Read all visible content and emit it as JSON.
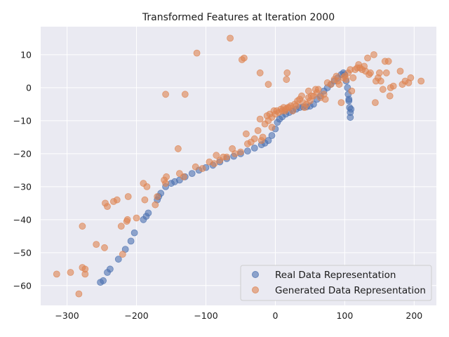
{
  "chart_data": {
    "type": "scatter",
    "title": "Transformed Features at Iteration 2000",
    "xlabel": "",
    "ylabel": "",
    "xlim": [
      -338,
      232
    ],
    "ylim": [
      -66,
      18.5
    ],
    "xticks": [
      -300,
      -200,
      -100,
      0,
      100,
      200
    ],
    "yticks": [
      -60,
      -50,
      -40,
      -30,
      -20,
      -10,
      0,
      10
    ],
    "xtick_labels": [
      "−300",
      "−200",
      "−100",
      "0",
      "100",
      "200"
    ],
    "ytick_labels": [
      "−60",
      "−50",
      "−40",
      "−30",
      "−20",
      "−10",
      "0",
      "10"
    ],
    "grid": true,
    "legend_position": "bottom-right",
    "colors": {
      "background": "#eaeaf2",
      "grid": "#ffffff"
    },
    "series": [
      {
        "name": "Real Data Representation",
        "color": "#4c72b0",
        "points": [
          [
            -252,
            -59
          ],
          [
            -248,
            -58.5
          ],
          [
            -242,
            -56
          ],
          [
            -238,
            -55
          ],
          [
            -226,
            -52
          ],
          [
            -216,
            -49
          ],
          [
            -208,
            -46.5
          ],
          [
            -203,
            -44
          ],
          [
            -190,
            -40
          ],
          [
            -186,
            -39
          ],
          [
            -183,
            -38
          ],
          [
            -170,
            -34
          ],
          [
            -168,
            -33
          ],
          [
            -165,
            -32
          ],
          [
            -158,
            -30
          ],
          [
            -150,
            -29
          ],
          [
            -145,
            -28.5
          ],
          [
            -138,
            -28
          ],
          [
            -130,
            -27
          ],
          [
            -120,
            -26
          ],
          [
            -110,
            -25
          ],
          [
            -100,
            -24.2
          ],
          [
            -90,
            -23.5
          ],
          [
            -80,
            -22.5
          ],
          [
            -70,
            -21.5
          ],
          [
            -60,
            -20.8
          ],
          [
            -50,
            -20
          ],
          [
            -40,
            -19.2
          ],
          [
            -30,
            -18.3
          ],
          [
            -20,
            -17.3
          ],
          [
            -15,
            -16.8
          ],
          [
            -10,
            -16
          ],
          [
            -5,
            -14.5
          ],
          [
            0,
            -12.5
          ],
          [
            3,
            -10.5
          ],
          [
            6,
            -9.5
          ],
          [
            10,
            -8.8
          ],
          [
            15,
            -8
          ],
          [
            20,
            -7.5
          ],
          [
            25,
            -7
          ],
          [
            30,
            -6.5
          ],
          [
            35,
            -6
          ],
          [
            40,
            -5.8
          ],
          [
            45,
            -5.8
          ],
          [
            50,
            -5.6
          ],
          [
            55,
            -5
          ],
          [
            60,
            -3.5
          ],
          [
            65,
            -2.5
          ],
          [
            70,
            -1
          ],
          [
            75,
            0
          ],
          [
            80,
            1
          ],
          [
            85,
            2
          ],
          [
            90,
            3
          ],
          [
            95,
            4
          ],
          [
            98,
            4.5
          ],
          [
            100,
            4
          ],
          [
            102,
            2
          ],
          [
            104,
            0
          ],
          [
            105,
            -2
          ],
          [
            106,
            -4
          ],
          [
            107,
            -6
          ],
          [
            108,
            -7.5
          ],
          [
            108,
            -9
          ],
          [
            109,
            -6.5
          ],
          [
            106,
            -3.5
          ]
        ]
      },
      {
        "name": "Generated Data Representation",
        "color": "#dd8452",
        "points": [
          [
            -315,
            -56.5
          ],
          [
            -295,
            -56
          ],
          [
            -283,
            -62.5
          ],
          [
            -278,
            -54.5
          ],
          [
            -274,
            -55
          ],
          [
            -274,
            -56.5
          ],
          [
            -278,
            -42
          ],
          [
            -258,
            -47.5
          ],
          [
            -246,
            -48.5
          ],
          [
            -245,
            -35
          ],
          [
            -242,
            -36
          ],
          [
            -233,
            -34.5
          ],
          [
            -228,
            -34
          ],
          [
            -222,
            -42
          ],
          [
            -220,
            -50.5
          ],
          [
            -214,
            -40.5
          ],
          [
            -213,
            -40
          ],
          [
            -212,
            -33
          ],
          [
            -200,
            -39.5
          ],
          [
            -190,
            -29
          ],
          [
            -188,
            -34
          ],
          [
            -185,
            -30
          ],
          [
            -173,
            -35.5
          ],
          [
            -170,
            -33
          ],
          [
            -160,
            -28
          ],
          [
            -157,
            -27
          ],
          [
            -158,
            -29
          ],
          [
            -158,
            -2
          ],
          [
            -140,
            -18.5
          ],
          [
            -138,
            -26
          ],
          [
            -132,
            -27
          ],
          [
            -130,
            -2
          ],
          [
            -115,
            -24
          ],
          [
            -113,
            10.5
          ],
          [
            -105,
            -24.5
          ],
          [
            -95,
            -22.5
          ],
          [
            -88,
            -23
          ],
          [
            -85,
            -20.5
          ],
          [
            -80,
            -22
          ],
          [
            -75,
            -21
          ],
          [
            -70,
            -21
          ],
          [
            -65,
            15
          ],
          [
            -62,
            -18.5
          ],
          [
            -58,
            -20
          ],
          [
            -50,
            -19.5
          ],
          [
            -48,
            8.5
          ],
          [
            -45,
            9
          ],
          [
            -42,
            -14
          ],
          [
            -40,
            -17
          ],
          [
            -35,
            -16.5
          ],
          [
            -30,
            -15.5
          ],
          [
            -25,
            -13
          ],
          [
            -22,
            -9.5
          ],
          [
            -20,
            -16
          ],
          [
            -22,
            4.5
          ],
          [
            -18,
            -15
          ],
          [
            -15,
            -11
          ],
          [
            -12,
            -8.5
          ],
          [
            -10,
            -10
          ],
          [
            -10,
            1
          ],
          [
            -8,
            -8
          ],
          [
            -5,
            -9
          ],
          [
            -5,
            -12
          ],
          [
            -2,
            -7
          ],
          [
            0,
            -8
          ],
          [
            2,
            -7
          ],
          [
            5,
            -7.5
          ],
          [
            8,
            -6.5
          ],
          [
            10,
            -7
          ],
          [
            12,
            -6
          ],
          [
            14,
            -7
          ],
          [
            15,
            -6.5
          ],
          [
            16,
            2.5
          ],
          [
            17,
            4.5
          ],
          [
            18,
            -6
          ],
          [
            20,
            -6
          ],
          [
            22,
            -5.5
          ],
          [
            25,
            -7
          ],
          [
            28,
            -5
          ],
          [
            30,
            -5.5
          ],
          [
            32,
            -4
          ],
          [
            35,
            -3.5
          ],
          [
            38,
            -2.5
          ],
          [
            40,
            -4.5
          ],
          [
            42,
            -6
          ],
          [
            45,
            -5
          ],
          [
            48,
            -3
          ],
          [
            50,
            -4
          ],
          [
            48,
            -1
          ],
          [
            52,
            -2.5
          ],
          [
            55,
            -2.5
          ],
          [
            58,
            -0.5
          ],
          [
            60,
            -1.5
          ],
          [
            62,
            -0.5
          ],
          [
            65,
            -3
          ],
          [
            70,
            -2
          ],
          [
            72,
            -3.5
          ],
          [
            75,
            1.5
          ],
          [
            80,
            1
          ],
          [
            85,
            2.5
          ],
          [
            88,
            3.5
          ],
          [
            90,
            2
          ],
          [
            92,
            1
          ],
          [
            95,
            -4.5
          ],
          [
            98,
            3
          ],
          [
            100,
            3.5
          ],
          [
            102,
            2.5
          ],
          [
            105,
            4.5
          ],
          [
            108,
            5.5
          ],
          [
            110,
            -1
          ],
          [
            112,
            3
          ],
          [
            115,
            5.5
          ],
          [
            118,
            6
          ],
          [
            120,
            7
          ],
          [
            122,
            6
          ],
          [
            125,
            5.5
          ],
          [
            128,
            6.5
          ],
          [
            130,
            5
          ],
          [
            133,
            9
          ],
          [
            135,
            4
          ],
          [
            137,
            4.5
          ],
          [
            142,
            10
          ],
          [
            144,
            -4.5
          ],
          [
            145,
            2
          ],
          [
            148,
            3
          ],
          [
            150,
            4.5
          ],
          [
            152,
            2
          ],
          [
            155,
            -0.5
          ],
          [
            158,
            8
          ],
          [
            160,
            4.5
          ],
          [
            163,
            8
          ],
          [
            165,
            -2.5
          ],
          [
            166,
            0
          ],
          [
            170,
            0.5
          ],
          [
            180,
            5
          ],
          [
            183,
            1
          ],
          [
            187,
            2
          ],
          [
            192,
            1.5
          ],
          [
            195,
            3
          ],
          [
            210,
            2
          ]
        ]
      }
    ]
  }
}
